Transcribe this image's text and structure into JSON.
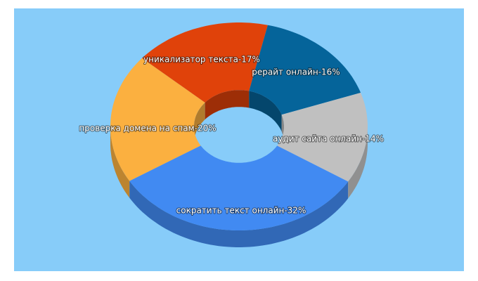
{
  "chart_data": {
    "type": "donut3d",
    "values": [
      32,
      20,
      17,
      16,
      14
    ],
    "value_labels": [
      "сократить текст онлайн-32%",
      "проверка домена на спам-20%",
      "уникализатор текста-17%",
      "рерайт онлайн-16%",
      "аудит сайта онлайн-14%"
    ],
    "colors": [
      "#418af2",
      "#fbb040",
      "#e0420a",
      "#05649a",
      "#c0c0c0"
    ]
  }
}
